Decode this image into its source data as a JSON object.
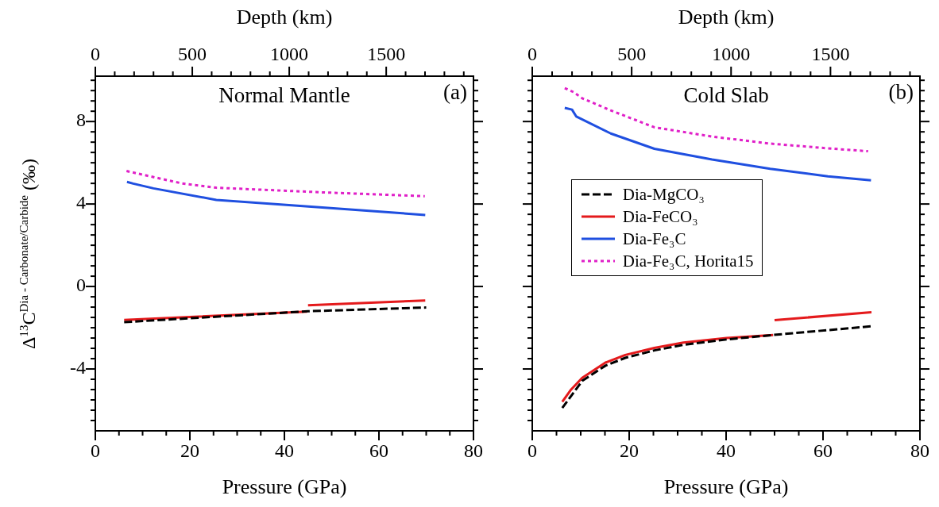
{
  "chart_data": [
    {
      "type": "line",
      "title": "Normal Mantle",
      "annotations": [
        "(a)"
      ],
      "xlabel": "Pressure (GPa)",
      "x2label": "Depth (km)",
      "ylabel": "Δ$^{13}$C$^{Dia - Carbonate/Carbide}$ (‰)",
      "xlim": [
        0,
        80
      ],
      "xticks": [
        0,
        {
          "value": 5,
          "label": null
        },
        {
          "value": 10,
          "label": null
        },
        {
          "value": 15,
          "label": null
        },
        20,
        {
          "value": 25,
          "label": null
        },
        {
          "value": 30,
          "label": null
        },
        {
          "value": 35,
          "label": null
        },
        40,
        {
          "value": 45,
          "label": null
        },
        {
          "value": 50,
          "label": null
        },
        {
          "value": 55,
          "label": null
        },
        60,
        {
          "value": 65,
          "label": null
        },
        {
          "value": 70,
          "label": null
        },
        {
          "value": 75,
          "label": null
        },
        80
      ],
      "x2lim": [
        0,
        1950
      ],
      "x2ticks": [
        0,
        {
          "value": 100,
          "label": null
        },
        {
          "value": 200,
          "label": null
        },
        {
          "value": 300,
          "label": null
        },
        {
          "value": 400,
          "label": null
        },
        500,
        {
          "value": 600,
          "label": null
        },
        {
          "value": 700,
          "label": null
        },
        {
          "value": 800,
          "label": null
        },
        {
          "value": 900,
          "label": null
        },
        1000,
        {
          "value": 1100,
          "label": null
        },
        {
          "value": 1200,
          "label": null
        },
        {
          "value": 1300,
          "label": null
        },
        {
          "value": 1400,
          "label": null
        },
        1500,
        {
          "value": 1600,
          "label": null
        },
        {
          "value": 1700,
          "label": null
        },
        {
          "value": 1800,
          "label": null
        },
        {
          "value": 1900,
          "label": null
        }
      ],
      "ylim": [
        -7,
        10.2
      ],
      "yticks": [
        {
          "value": -6.5,
          "label": null
        },
        {
          "value": -6,
          "label": null
        },
        {
          "value": -5.5,
          "label": null
        },
        {
          "value": -5,
          "label": null
        },
        {
          "value": -4.5,
          "label": null
        },
        -4,
        {
          "value": -3.5,
          "label": null
        },
        {
          "value": -3,
          "label": null
        },
        {
          "value": -2.5,
          "label": null
        },
        {
          "value": -2,
          "label": null
        },
        {
          "value": -1.5,
          "label": null
        },
        {
          "value": -1,
          "label": null
        },
        {
          "value": -0.5,
          "label": null
        },
        0,
        {
          "value": 0.5,
          "label": null
        },
        {
          "value": 1,
          "label": null
        },
        {
          "value": 1.5,
          "label": null
        },
        {
          "value": 2,
          "label": null
        },
        {
          "value": 2.5,
          "label": null
        },
        {
          "value": 3,
          "label": null
        },
        {
          "value": 3.5,
          "label": null
        },
        4,
        {
          "value": 4.5,
          "label": null
        },
        {
          "value": 5,
          "label": null
        },
        {
          "value": 5.5,
          "label": null
        },
        {
          "value": 6,
          "label": null
        },
        {
          "value": 6.5,
          "label": null
        },
        {
          "value": 7,
          "label": null
        },
        {
          "value": 7.5,
          "label": null
        },
        8,
        {
          "value": 8.5,
          "label": null
        },
        {
          "value": 9,
          "label": null
        },
        {
          "value": 9.5,
          "label": null
        },
        {
          "value": 10,
          "label": null
        }
      ],
      "marker": "none",
      "series": [
        {
          "color": "#000000",
          "line_style": "dashed",
          "x": [
            6.1,
            45,
            70
          ],
          "values": [
            -1.73,
            -1.2,
            -1.02
          ]
        },
        {
          "color": "#e41a1c",
          "line_style": "solid",
          "x": [
            6.1,
            44.8,
            44.9,
            45,
            69.8
          ],
          "values": [
            -1.62,
            -1.22,
            null,
            -0.91,
            -0.68
          ]
        },
        {
          "color": "#1f4fe0",
          "line_style": "solid",
          "x": [
            6.7,
            8,
            12.3,
            25.6,
            48.6,
            69.8
          ],
          "values": [
            5.07,
            4.99,
            4.76,
            4.2,
            3.82,
            3.47
          ]
        },
        {
          "color": "#e020c8",
          "line_style": "dotted",
          "x": [
            6.6,
            18.3,
            25.6,
            48.6,
            69.7
          ],
          "values": [
            5.6,
            5.0,
            4.79,
            4.56,
            4.38
          ]
        }
      ]
    },
    {
      "type": "line",
      "title": "Cold Slab",
      "annotations": [
        "(b)"
      ],
      "xlabel": "Pressure (GPa)",
      "x2label": "Depth (km)",
      "tick_labels": "x",
      "legend": "center left",
      "xlim": [
        0,
        80
      ],
      "xticks": [
        0,
        {
          "value": 5,
          "label": null
        },
        {
          "value": 10,
          "label": null
        },
        {
          "value": 15,
          "label": null
        },
        20,
        {
          "value": 25,
          "label": null
        },
        {
          "value": 30,
          "label": null
        },
        {
          "value": 35,
          "label": null
        },
        40,
        {
          "value": 45,
          "label": null
        },
        {
          "value": 50,
          "label": null
        },
        {
          "value": 55,
          "label": null
        },
        60,
        {
          "value": 65,
          "label": null
        },
        {
          "value": 70,
          "label": null
        },
        {
          "value": 75,
          "label": null
        },
        80
      ],
      "x2lim": [
        0,
        1950
      ],
      "x2ticks": [
        0,
        {
          "value": 100,
          "label": null
        },
        {
          "value": 200,
          "label": null
        },
        {
          "value": 300,
          "label": null
        },
        {
          "value": 400,
          "label": null
        },
        500,
        {
          "value": 600,
          "label": null
        },
        {
          "value": 700,
          "label": null
        },
        {
          "value": 800,
          "label": null
        },
        {
          "value": 900,
          "label": null
        },
        1000,
        {
          "value": 1100,
          "label": null
        },
        {
          "value": 1200,
          "label": null
        },
        {
          "value": 1300,
          "label": null
        },
        {
          "value": 1400,
          "label": null
        },
        1500,
        {
          "value": 1600,
          "label": null
        },
        {
          "value": 1700,
          "label": null
        },
        {
          "value": 1800,
          "label": null
        },
        {
          "value": 1900,
          "label": null
        }
      ],
      "ylim": [
        -7,
        10.2
      ],
      "yticks": [
        {
          "value": -6.5,
          "label": null
        },
        {
          "value": -6,
          "label": null
        },
        {
          "value": -5.5,
          "label": null
        },
        {
          "value": -5,
          "label": null
        },
        {
          "value": -4.5,
          "label": null
        },
        -4,
        {
          "value": -3.5,
          "label": null
        },
        {
          "value": -3,
          "label": null
        },
        {
          "value": -2.5,
          "label": null
        },
        {
          "value": -2,
          "label": null
        },
        {
          "value": -1.5,
          "label": null
        },
        {
          "value": -1,
          "label": null
        },
        {
          "value": -0.5,
          "label": null
        },
        0,
        {
          "value": 0.5,
          "label": null
        },
        {
          "value": 1,
          "label": null
        },
        {
          "value": 1.5,
          "label": null
        },
        {
          "value": 2,
          "label": null
        },
        {
          "value": 2.5,
          "label": null
        },
        {
          "value": 3,
          "label": null
        },
        {
          "value": 3.5,
          "label": null
        },
        4,
        {
          "value": 4.5,
          "label": null
        },
        {
          "value": 5,
          "label": null
        },
        {
          "value": 5.5,
          "label": null
        },
        {
          "value": 6,
          "label": null
        },
        {
          "value": 6.5,
          "label": null
        },
        {
          "value": 7,
          "label": null
        },
        {
          "value": 7.5,
          "label": null
        },
        8,
        {
          "value": 8.5,
          "label": null
        },
        {
          "value": 9,
          "label": null
        },
        {
          "value": 9.5,
          "label": null
        },
        {
          "value": 10,
          "label": null
        }
      ],
      "marker": "none",
      "series": [
        {
          "name": "Dia-MgCO₃",
          "color": "#000000",
          "line_style": "dashed",
          "x": [
            6.2,
            10.3,
            15.1,
            19.2,
            25.2,
            31.2,
            40.1,
            49.7,
            70
          ],
          "values": [
            -5.89,
            -4.58,
            -3.84,
            -3.46,
            -3.1,
            -2.83,
            -2.57,
            -2.35,
            -1.93
          ]
        },
        {
          "name": "Dia-FeCO₃",
          "color": "#e41a1c",
          "line_style": "solid",
          "x": [
            6.2,
            7.9,
            10.3,
            15.1,
            19.2,
            25.2,
            31.2,
            40.1,
            49.7,
            49.8,
            50,
            70
          ],
          "values": [
            -5.59,
            -5.03,
            -4.43,
            -3.69,
            -3.32,
            -2.98,
            -2.72,
            -2.5,
            -2.35,
            null,
            -1.63,
            -1.25
          ]
        },
        {
          "name": "Dia-Fe₃C",
          "color": "#1f4fe0",
          "line_style": "solid",
          "x": [
            6.7,
            8.2,
            9.1,
            16.2,
            25.2,
            37.1,
            49.1,
            61,
            69.9
          ],
          "values": [
            8.66,
            8.58,
            8.24,
            7.42,
            6.68,
            6.16,
            5.71,
            5.34,
            5.15
          ]
        },
        {
          "name": "Dia-Fe₃C, Horita15",
          "color": "#e020c8",
          "line_style": "dotted",
          "x": [
            6.7,
            8.5,
            10.3,
            16.2,
            25.2,
            37.1,
            49.1,
            61,
            69.3
          ],
          "values": [
            9.62,
            9.43,
            9.13,
            8.54,
            7.72,
            7.27,
            6.93,
            6.7,
            6.56
          ]
        }
      ]
    }
  ]
}
